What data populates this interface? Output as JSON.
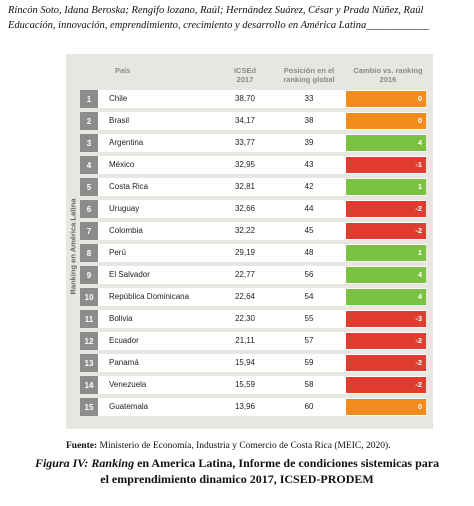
{
  "header": {
    "line1": "Rincón Soto, Idana Beroska; Rengifo lozano, Raúl; Hernández Suárez, César y Prada Núñez, Raúl",
    "line2": "Educación, innovación, emprendimiento, crecimiento y desarrollo en América Latina____________"
  },
  "table": {
    "side_label": "Ranking en América Latina",
    "col_pais": "País",
    "col_icsed": "ICSEd 2017",
    "col_pos": "Posición en el ranking global",
    "col_cambio": "Cambio vs. ranking 2016",
    "colors": {
      "positive": "#7cc242",
      "negative": "#e03c2f",
      "zero": "#f28c1c",
      "rank_box": "#8c8c8c",
      "panel": "#e8e6e0"
    },
    "rows": [
      {
        "rank": "1",
        "country": "Chile",
        "icsed": "38,70",
        "pos": "33",
        "change": "0",
        "kind": "zero"
      },
      {
        "rank": "2",
        "country": "Brasil",
        "icsed": "34,17",
        "pos": "38",
        "change": "0",
        "kind": "zero"
      },
      {
        "rank": "3",
        "country": "Argentina",
        "icsed": "33,77",
        "pos": "39",
        "change": "4",
        "kind": "positive"
      },
      {
        "rank": "4",
        "country": "México",
        "icsed": "32,95",
        "pos": "43",
        "change": "-1",
        "kind": "negative"
      },
      {
        "rank": "5",
        "country": "Costa Rica",
        "icsed": "32,81",
        "pos": "42",
        "change": "1",
        "kind": "positive"
      },
      {
        "rank": "6",
        "country": "Uruguay",
        "icsed": "32,66",
        "pos": "44",
        "change": "-2",
        "kind": "negative"
      },
      {
        "rank": "7",
        "country": "Colombia",
        "icsed": "32,22",
        "pos": "45",
        "change": "-2",
        "kind": "negative"
      },
      {
        "rank": "8",
        "country": "Perú",
        "icsed": "29,19",
        "pos": "48",
        "change": "1",
        "kind": "positive"
      },
      {
        "rank": "9",
        "country": "El Salvador",
        "icsed": "22,77",
        "pos": "56",
        "change": "4",
        "kind": "positive"
      },
      {
        "rank": "10",
        "country": "República Dominicana",
        "icsed": "22,64",
        "pos": "54",
        "change": "4",
        "kind": "positive"
      },
      {
        "rank": "11",
        "country": "Bolivia",
        "icsed": "22,30",
        "pos": "55",
        "change": "-3",
        "kind": "negative"
      },
      {
        "rank": "12",
        "country": "Ecuador",
        "icsed": "21,11",
        "pos": "57",
        "change": "-2",
        "kind": "negative"
      },
      {
        "rank": "13",
        "country": "Panamá",
        "icsed": "15,94",
        "pos": "59",
        "change": "-2",
        "kind": "negative"
      },
      {
        "rank": "14",
        "country": "Venezuela",
        "icsed": "15,59",
        "pos": "58",
        "change": "-2",
        "kind": "negative"
      },
      {
        "rank": "15",
        "country": "Guatemala",
        "icsed": "13,96",
        "pos": "60",
        "change": "0",
        "kind": "zero"
      }
    ]
  },
  "fuente": {
    "label": "Fuente:",
    "text": " Ministerio de Economía, Industria y Comercio de Costa Rica (MEIC, 2020)."
  },
  "caption": {
    "prefix": "Figura IV: Ranking",
    "line1_rest": " en America Latina, Informe de condiciones sistemicas para",
    "line2": "el emprendimiento dinamico 2017, ICSED-PRODEM"
  }
}
